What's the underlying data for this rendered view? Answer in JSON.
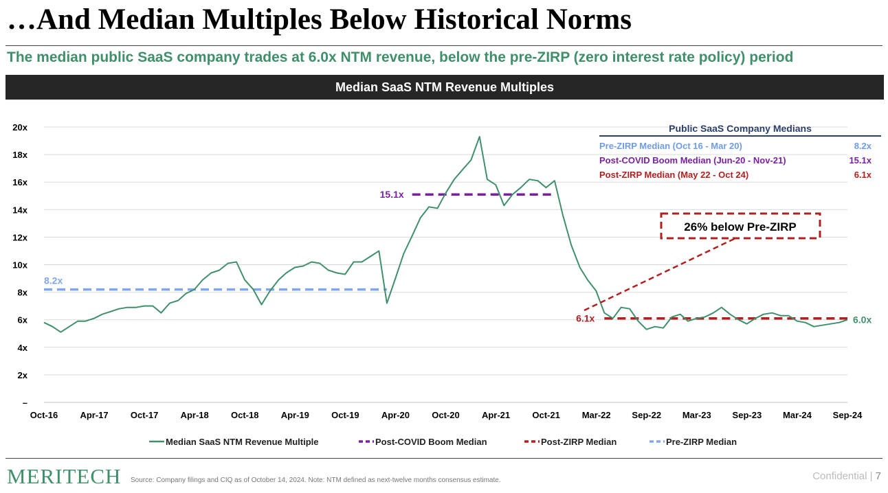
{
  "page": {
    "title": "…And Median Multiples Below Historical Norms",
    "subtitle": "The median public SaaS company trades at 6.0x NTM revenue, below the pre-ZIRP (zero interest rate policy) period",
    "banner": "Median SaaS NTM Revenue Multiples",
    "logo_text": "MERITECH",
    "source": "Source: Company filings and CIQ as of October 14, 2024. Note: NTM defined as next-twelve months consensus estimate.",
    "confidential": "Confidential",
    "page_number": "7"
  },
  "chart_data": {
    "type": "line",
    "title": "Median SaaS NTM Revenue Multiples",
    "xlabel": "",
    "ylabel": "",
    "ylim": [
      0,
      20
    ],
    "y_ticks": [
      "–",
      "2x",
      "4x",
      "6x",
      "8x",
      "10x",
      "12x",
      "14x",
      "16x",
      "18x",
      "20x"
    ],
    "x_tick_labels": [
      "Oct-16",
      "Apr-17",
      "Oct-17",
      "Apr-18",
      "Oct-18",
      "Apr-19",
      "Oct-19",
      "Apr-20",
      "Oct-20",
      "Apr-21",
      "Oct-21",
      "Mar-22",
      "Sep-22",
      "Mar-23",
      "Sep-23",
      "Mar-24",
      "Sep-24"
    ],
    "grid": true,
    "legend_position": "bottom",
    "series": [
      {
        "name": "Median SaaS NTM Revenue Multiple",
        "color": "#3f8f6a",
        "points": [
          [
            "2016-10",
            5.8
          ],
          [
            "2016-11",
            5.5
          ],
          [
            "2016-12",
            5.1
          ],
          [
            "2017-01",
            5.5
          ],
          [
            "2017-02",
            5.9
          ],
          [
            "2017-03",
            5.9
          ],
          [
            "2017-04",
            6.1
          ],
          [
            "2017-05",
            6.4
          ],
          [
            "2017-06",
            6.6
          ],
          [
            "2017-07",
            6.8
          ],
          [
            "2017-08",
            6.9
          ],
          [
            "2017-09",
            6.9
          ],
          [
            "2017-10",
            7.0
          ],
          [
            "2017-11",
            7.0
          ],
          [
            "2017-12",
            6.5
          ],
          [
            "2018-01",
            7.2
          ],
          [
            "2018-02",
            7.4
          ],
          [
            "2018-03",
            7.9
          ],
          [
            "2018-04",
            8.2
          ],
          [
            "2018-05",
            8.9
          ],
          [
            "2018-06",
            9.4
          ],
          [
            "2018-07",
            9.6
          ],
          [
            "2018-08",
            10.1
          ],
          [
            "2018-09",
            10.2
          ],
          [
            "2018-10",
            8.9
          ],
          [
            "2018-11",
            8.2
          ],
          [
            "2018-12",
            7.1
          ],
          [
            "2019-01",
            8.1
          ],
          [
            "2019-02",
            8.9
          ],
          [
            "2019-03",
            9.4
          ],
          [
            "2019-04",
            9.8
          ],
          [
            "2019-05",
            9.9
          ],
          [
            "2019-06",
            10.2
          ],
          [
            "2019-07",
            10.1
          ],
          [
            "2019-08",
            9.6
          ],
          [
            "2019-09",
            9.4
          ],
          [
            "2019-10",
            9.3
          ],
          [
            "2019-11",
            10.2
          ],
          [
            "2019-12",
            10.2
          ],
          [
            "2020-01",
            10.6
          ],
          [
            "2020-02",
            11.0
          ],
          [
            "2020-03",
            7.2
          ],
          [
            "2020-04",
            9.0
          ],
          [
            "2020-05",
            10.8
          ],
          [
            "2020-06",
            12.1
          ],
          [
            "2020-07",
            13.4
          ],
          [
            "2020-08",
            14.2
          ],
          [
            "2020-09",
            14.1
          ],
          [
            "2020-10",
            15.2
          ],
          [
            "2020-11",
            16.2
          ],
          [
            "2020-12",
            16.9
          ],
          [
            "2021-01",
            17.6
          ],
          [
            "2021-02",
            19.3
          ],
          [
            "2021-03",
            16.2
          ],
          [
            "2021-04",
            15.8
          ],
          [
            "2021-05",
            14.3
          ],
          [
            "2021-06",
            15.1
          ],
          [
            "2021-07",
            15.6
          ],
          [
            "2021-08",
            16.2
          ],
          [
            "2021-09",
            16.1
          ],
          [
            "2021-10",
            15.6
          ],
          [
            "2021-11",
            16.1
          ],
          [
            "2021-12",
            13.6
          ],
          [
            "2022-01",
            11.4
          ],
          [
            "2022-02",
            9.8
          ],
          [
            "2022-03",
            8.9
          ],
          [
            "2022-04",
            8.1
          ],
          [
            "2022-05",
            6.5
          ],
          [
            "2022-06",
            6.1
          ],
          [
            "2022-07",
            6.9
          ],
          [
            "2022-08",
            6.8
          ],
          [
            "2022-09",
            5.9
          ],
          [
            "2022-10",
            5.3
          ],
          [
            "2022-11",
            5.5
          ],
          [
            "2022-12",
            5.4
          ],
          [
            "2023-01",
            6.2
          ],
          [
            "2023-02",
            6.4
          ],
          [
            "2023-03",
            5.9
          ],
          [
            "2023-04",
            6.1
          ],
          [
            "2023-05",
            6.2
          ],
          [
            "2023-06",
            6.5
          ],
          [
            "2023-07",
            6.9
          ],
          [
            "2023-08",
            6.4
          ],
          [
            "2023-09",
            6.0
          ],
          [
            "2023-10",
            5.7
          ],
          [
            "2023-11",
            6.1
          ],
          [
            "2023-12",
            6.4
          ],
          [
            "2024-01",
            6.5
          ],
          [
            "2024-02",
            6.3
          ],
          [
            "2024-03",
            6.3
          ],
          [
            "2024-04",
            5.9
          ],
          [
            "2024-05",
            5.8
          ],
          [
            "2024-06",
            5.5
          ],
          [
            "2024-07",
            5.6
          ],
          [
            "2024-08",
            5.7
          ],
          [
            "2024-09",
            5.8
          ],
          [
            "2024-10",
            6.0
          ]
        ]
      },
      {
        "name": "Post-COVID Boom Median",
        "color": "#7a1fa2",
        "start": "2020-06",
        "end": "2021-11",
        "value": 15.1,
        "label": "15.1x"
      },
      {
        "name": "Post-ZIRP Median",
        "color": "#b21f1f",
        "start": "2022-05",
        "end": "2024-10",
        "value": 6.1,
        "label": "6.1x"
      },
      {
        "name": "Pre-ZIRP Median",
        "color": "#7fa7ee",
        "start": "2016-10",
        "end": "2020-03",
        "value": 8.2,
        "label": "8.2x"
      }
    ],
    "end_label": "6.0x",
    "annotation": "26% below Pre-ZIRP",
    "medians_table": {
      "title": "Public SaaS Company Medians",
      "rows": [
        {
          "label": "Pre-ZIRP Median (Oct 16 - Mar 20)",
          "value": "8.2x",
          "color": "#6e9be8"
        },
        {
          "label": "Post-COVID Boom Median (Jun-20 - Nov-21)",
          "value": "15.1x",
          "color": "#7a1fa2"
        },
        {
          "label": "Post-ZIRP Median (May 22 - Oct 24)",
          "value": "6.1x",
          "color": "#b21f1f"
        }
      ]
    }
  }
}
